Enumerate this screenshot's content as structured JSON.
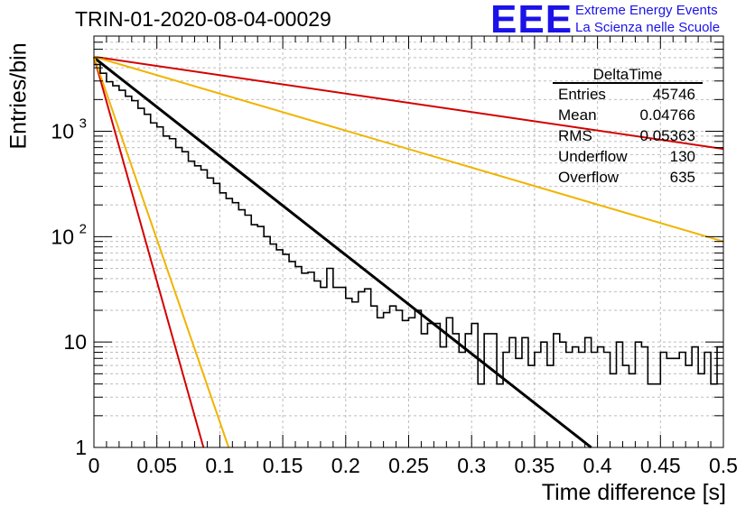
{
  "title": "TRIN-01-2020-08-04-00029",
  "logo": {
    "mark": "EEE",
    "line1": "Extreme Energy Events",
    "line2": "La Scienza nelle Scuole",
    "color": "#1a12e8"
  },
  "stats": {
    "header": "DeltaTime",
    "rows": [
      {
        "label": "Entries",
        "value": "45746"
      },
      {
        "label": "Mean",
        "value": "0.04766"
      },
      {
        "label": "RMS",
        "value": "0.05363"
      },
      {
        "label": "Underflow",
        "value": "130"
      },
      {
        "label": "Overflow",
        "value": "635"
      }
    ]
  },
  "chart_data": {
    "type": "line",
    "xlabel": "Time difference [s]",
    "ylabel": "Entries/bin",
    "xlim": [
      0,
      0.5
    ],
    "ylim": [
      1,
      8000
    ],
    "y_scale": "log",
    "grid": true,
    "x_ticks": [
      "0",
      "0.05",
      "0.1",
      "0.15",
      "0.2",
      "0.25",
      "0.3",
      "0.35",
      "0.4",
      "0.45",
      "0.5"
    ],
    "y_ticks": [
      {
        "value": 1,
        "label": "1"
      },
      {
        "value": 10,
        "label": "10"
      },
      {
        "value": 100,
        "label": "10^2"
      },
      {
        "value": 1000,
        "label": "10^3"
      }
    ],
    "histogram": {
      "color": "#000000",
      "bin_width": 0.005,
      "x_start": 0,
      "values": [
        4300,
        3550,
        2950,
        2700,
        2450,
        2150,
        1950,
        1650,
        1450,
        1200,
        1100,
        900,
        850,
        700,
        640,
        520,
        470,
        430,
        360,
        320,
        260,
        230,
        210,
        180,
        160,
        130,
        125,
        100,
        85,
        75,
        68,
        58,
        52,
        45,
        46,
        38,
        33,
        50,
        33,
        33,
        26,
        24,
        30,
        32,
        22,
        17,
        19,
        22,
        20,
        16,
        17,
        20,
        12,
        15,
        15,
        9,
        17,
        12,
        8,
        12,
        15,
        4,
        12,
        12,
        4,
        8,
        11,
        7,
        11,
        6,
        8,
        10,
        6,
        12,
        10,
        8,
        9,
        8,
        11,
        8,
        9,
        8,
        5,
        10,
        6,
        5,
        10,
        9,
        4,
        4,
        8,
        7,
        7,
        8,
        6,
        9,
        5,
        8,
        4,
        9
      ]
    },
    "fits": [
      {
        "color": "#000000",
        "x": [
          0,
          0.395
        ],
        "y": [
          5000,
          1
        ]
      },
      {
        "color": "#d40000",
        "x": [
          0,
          0.5
        ],
        "y": [
          5100,
          680
        ]
      },
      {
        "color": "#f0b400",
        "x": [
          0,
          0.5
        ],
        "y": [
          5100,
          90
        ]
      },
      {
        "color": "#d40000",
        "x": [
          0,
          0.087
        ],
        "y": [
          5100,
          1
        ]
      },
      {
        "color": "#f0b400",
        "x": [
          0,
          0.107
        ],
        "y": [
          5100,
          1
        ]
      }
    ]
  }
}
